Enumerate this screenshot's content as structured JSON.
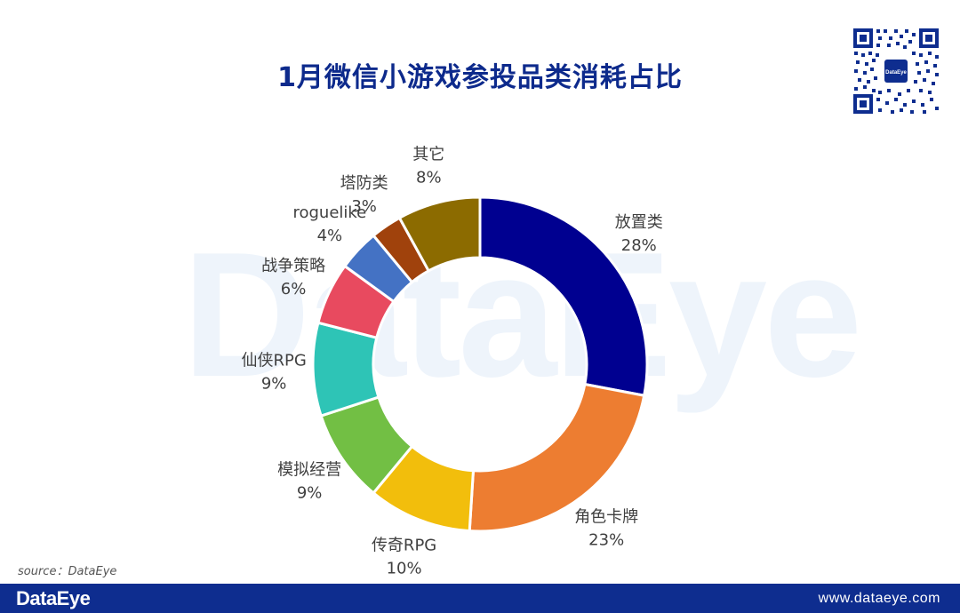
{
  "title": "1月微信小游戏参投品类消耗占比",
  "watermark": "DataEye",
  "source": "source：DataEye",
  "footer": {
    "brand": "DataEye",
    "website": "www.dataeye.com"
  },
  "chart_data": {
    "type": "pie",
    "style": "donut",
    "slices": [
      {
        "label": "放置类",
        "value": 28,
        "value_label": "28%",
        "color": "#000090"
      },
      {
        "label": "角色卡牌",
        "value": 23,
        "value_label": "23%",
        "color": "#ed7d31"
      },
      {
        "label": "传奇RPG",
        "value": 10,
        "value_label": "10%",
        "color": "#f2be0c"
      },
      {
        "label": "模拟经营",
        "value": 9,
        "value_label": "9%",
        "color": "#72bf44"
      },
      {
        "label": "仙侠RPG",
        "value": 9,
        "value_label": "9%",
        "color": "#2ec4b6"
      },
      {
        "label": "战争策略",
        "value": 6,
        "value_label": "6%",
        "color": "#e84a5f"
      },
      {
        "label": "roguelike",
        "value": 4,
        "value_label": "4%",
        "color": "#4472c4"
      },
      {
        "label": "塔防类",
        "value": 3,
        "value_label": "3%",
        "color": "#a0420c"
      },
      {
        "label": "其它",
        "value": 8,
        "value_label": "8%",
        "color": "#8c6b00"
      }
    ]
  }
}
